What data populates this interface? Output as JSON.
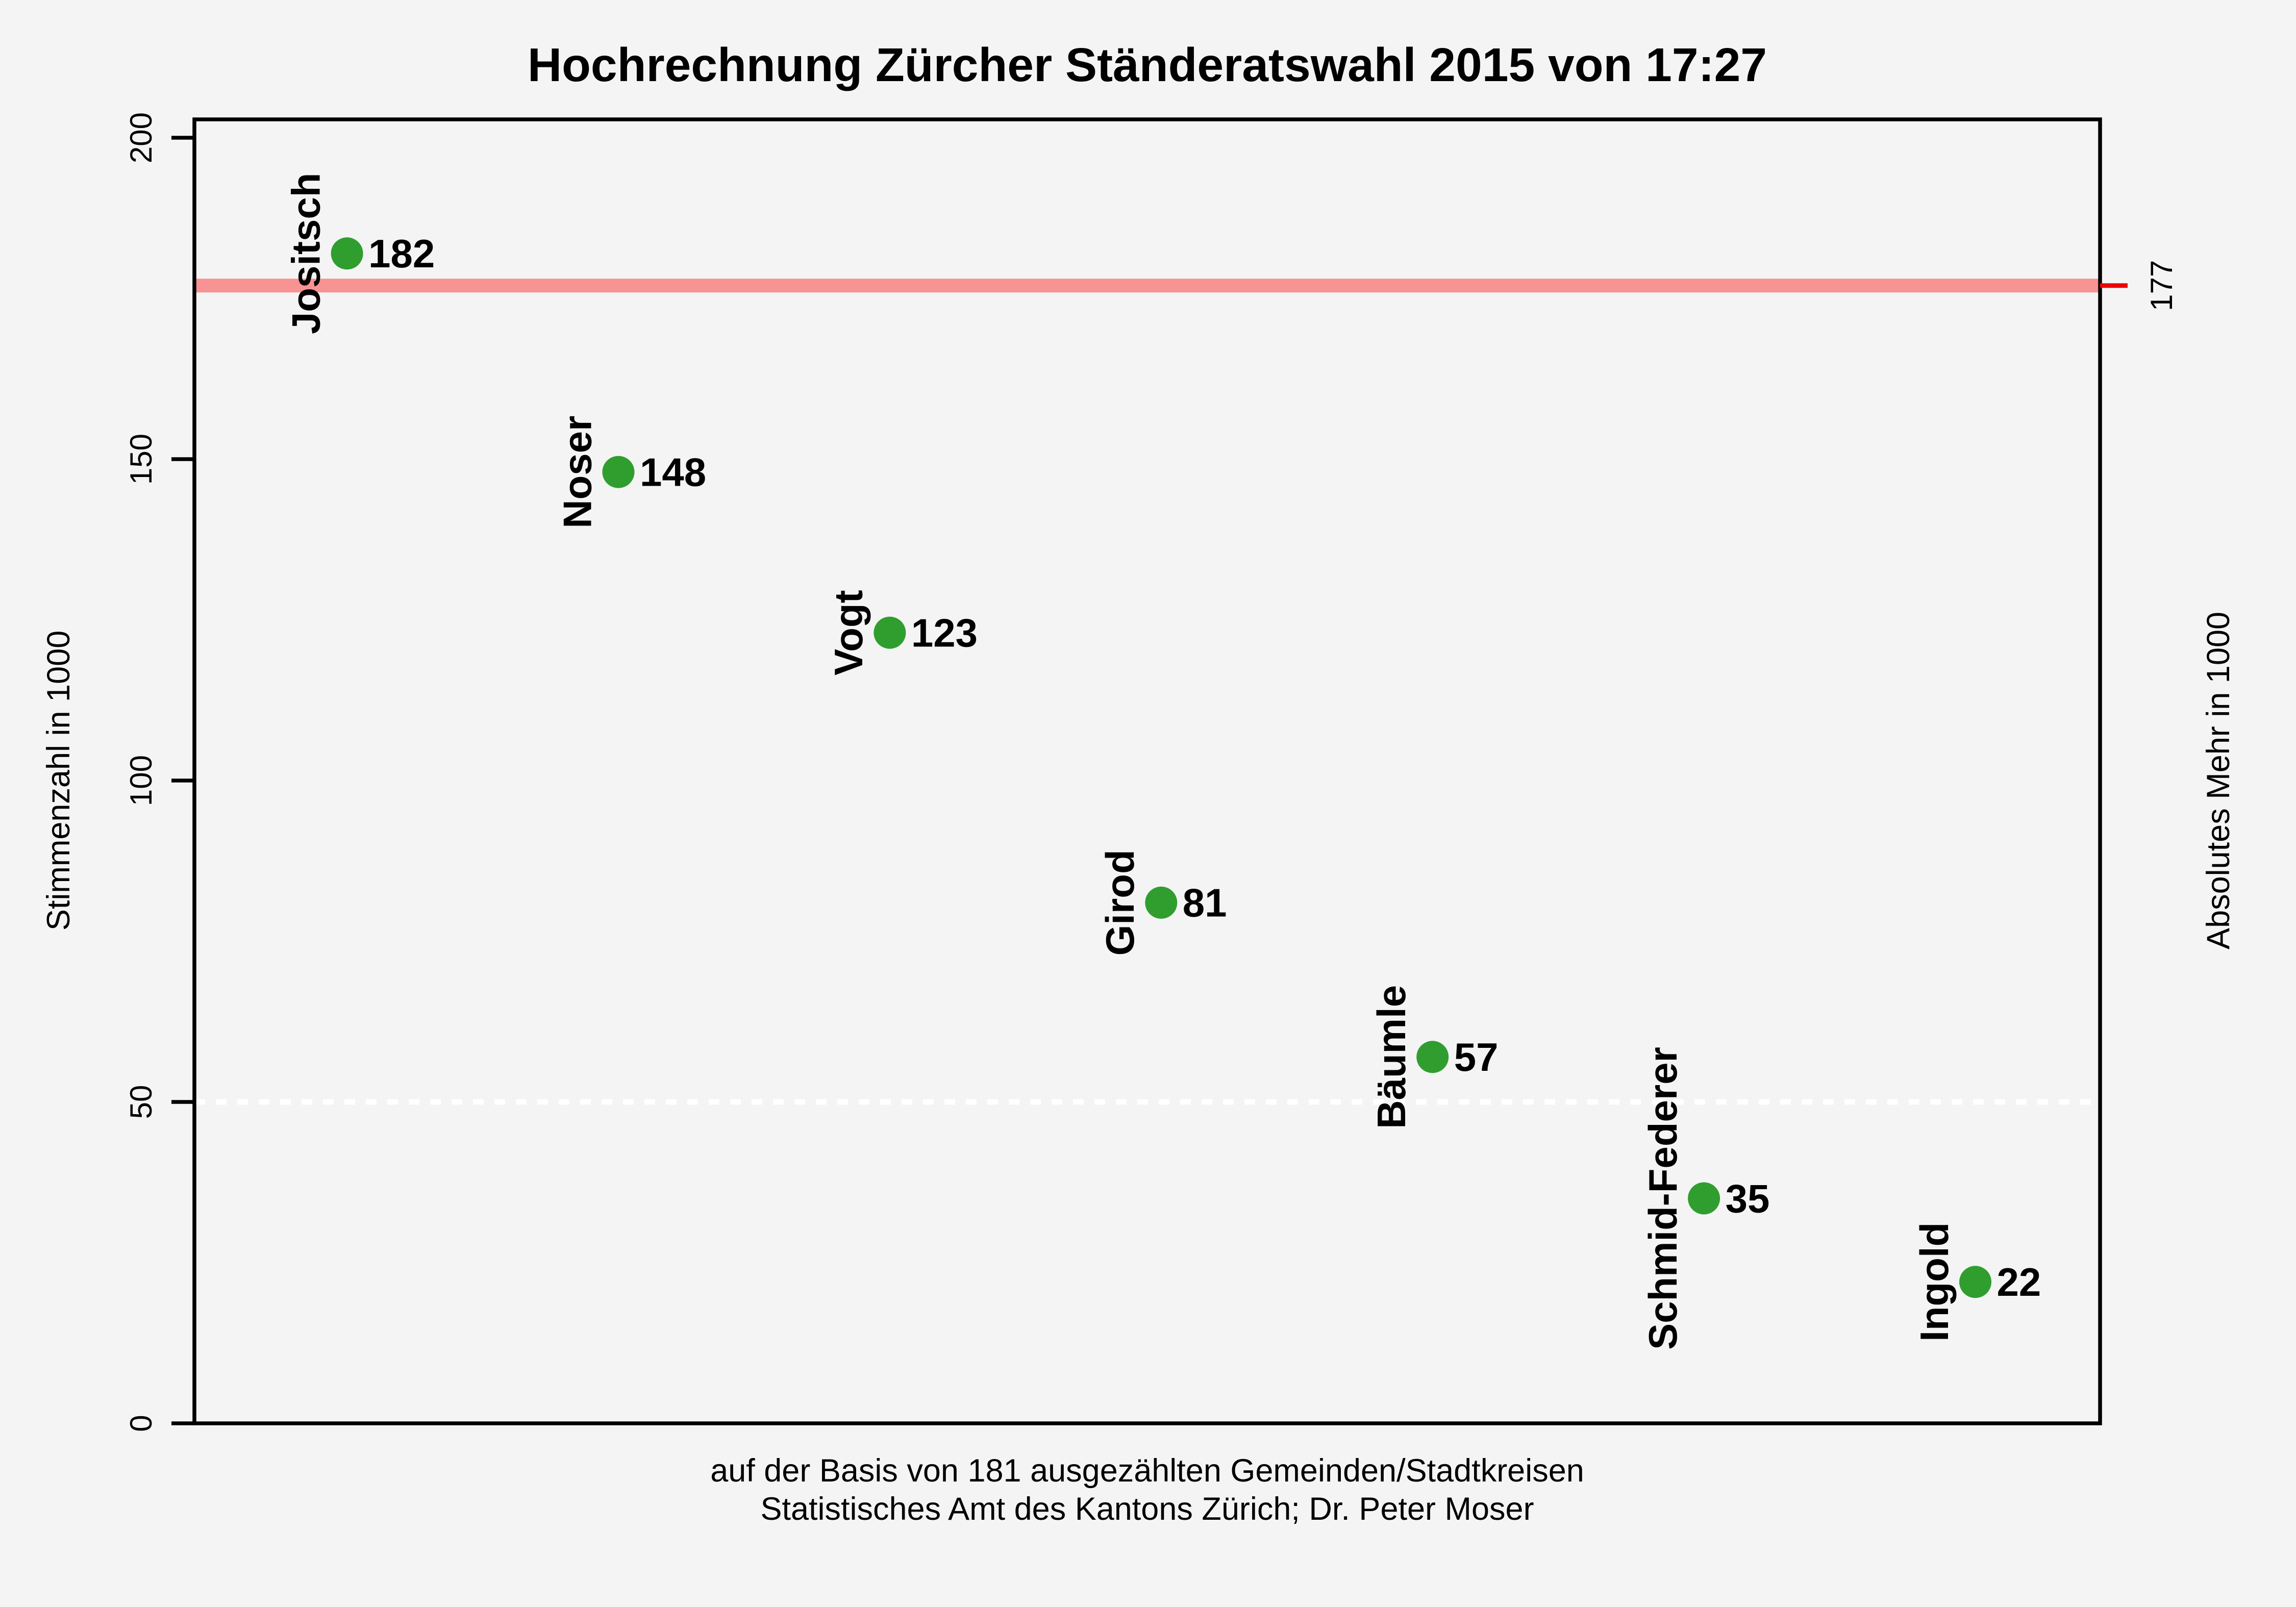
{
  "title": "Hochrechnung Zürcher Ständeratswahl 2015 von 17:27",
  "y_axis": {
    "label": "Stimmenzahl in 1000"
  },
  "right_axis": {
    "label": "Absolutes Mehr in 1000",
    "majority_label": "177"
  },
  "footer": {
    "line1": "auf der Basis von 181 ausgezählten Gemeinden/Stadtkreisen",
    "line2": "Statistisches Amt des Kantons Zürich; Dr. Peter Moser"
  },
  "colors": {
    "background": "#f4f4f4",
    "point_green": "#2f9e2f",
    "value_text_green": "#0b6d0b",
    "majority_band": "#f89394",
    "majority_red": "#ee0000",
    "gridline_white": "#ffffff",
    "axis_black": "#000000"
  },
  "chart_data": {
    "type": "scatter",
    "categories": [
      "Jositsch",
      "Noser",
      "Vogt",
      "Girod",
      "Bäumle",
      "Schmid-Federer",
      "Ingold"
    ],
    "values": [
      182,
      148,
      123,
      81,
      57,
      35,
      22
    ],
    "title": "Hochrechnung Zürcher Ständeratswahl 2015 von 17:27",
    "xlabel": "",
    "ylabel": "Stimmenzahl in 1000",
    "ylabel_right": "Absolutes Mehr in 1000",
    "ylim": [
      0,
      200
    ],
    "y_ticks": [
      0,
      50,
      100,
      150,
      200
    ],
    "majority_line_value": 177,
    "gridline_value": 50,
    "grid": "single dashed white line at 50",
    "legend_position": "none",
    "point_labels_bold_green": true,
    "category_labels_rotated_90": true
  }
}
